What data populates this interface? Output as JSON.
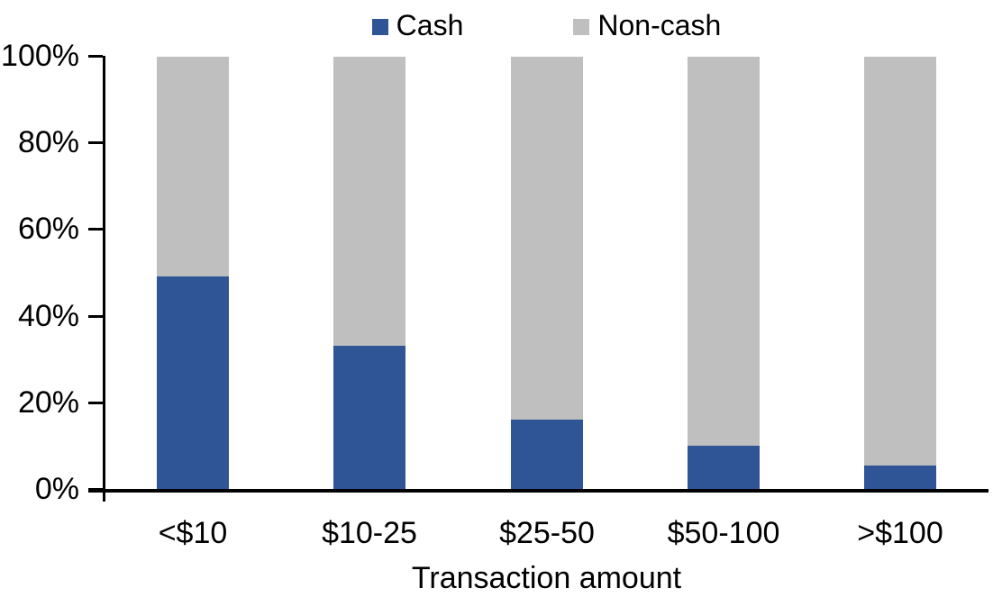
{
  "chart_data": {
    "type": "bar",
    "stacked": true,
    "percent_stacked": true,
    "title": "",
    "xlabel": "Transaction amount",
    "ylabel": "",
    "categories": [
      "<$10",
      "$10-25",
      "$25-50",
      "$50-100",
      ">$100"
    ],
    "series": [
      {
        "name": "Cash",
        "color": "#2F5597",
        "values": [
          49,
          33,
          16,
          10,
          5.5
        ]
      },
      {
        "name": "Non-cash",
        "color": "#BFBFBF",
        "values": [
          51,
          67,
          84,
          90,
          94.5
        ]
      }
    ],
    "ylim": [
      0,
      100
    ],
    "yticks": [
      0,
      20,
      40,
      60,
      80,
      100
    ],
    "ytick_format": "{v}%",
    "grid": false,
    "legend_position": "top",
    "axis_color": "#000000"
  }
}
